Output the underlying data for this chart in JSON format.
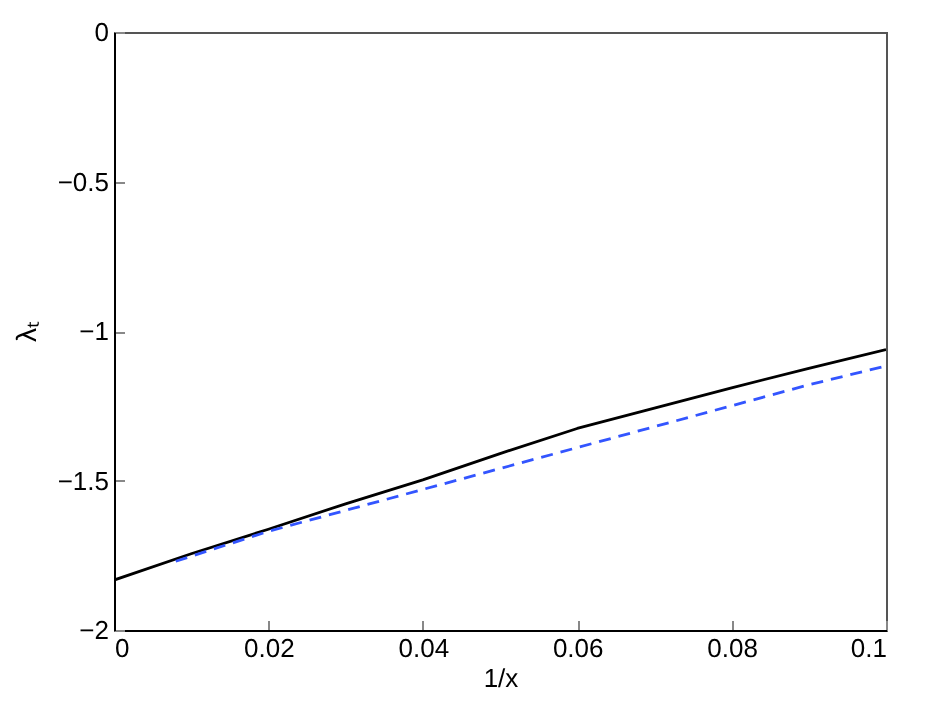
{
  "chart_data": {
    "type": "line",
    "xlabel": "1/x",
    "ylabel": "λₜ",
    "xlim": [
      0,
      0.1
    ],
    "ylim": [
      -2,
      0
    ],
    "xticks": [
      0,
      0.02,
      0.04,
      0.06,
      0.08,
      0.1
    ],
    "yticks": [
      -2,
      -1.5,
      -1,
      -0.5,
      0
    ],
    "grid": false,
    "series": [
      {
        "color": "#000000",
        "line_style": "solid",
        "x": [
          0,
          0.01,
          0.02,
          0.03,
          0.04,
          0.05,
          0.06,
          0.07,
          0.08,
          0.09,
          0.1
        ],
        "values": [
          -1.833,
          -1.745,
          -1.663,
          -1.578,
          -1.498,
          -1.41,
          -1.326,
          -1.258,
          -1.19,
          -1.125,
          -1.062
        ]
      },
      {
        "color": "#3355ff",
        "line_style": "dashed",
        "x": [
          0.008,
          0.02,
          0.03,
          0.04,
          0.05,
          0.06,
          0.07,
          0.08,
          0.09,
          0.1
        ],
        "values": [
          -1.77,
          -1.67,
          -1.6,
          -1.53,
          -1.46,
          -1.39,
          -1.32,
          -1.25,
          -1.18,
          -1.117
        ]
      }
    ]
  }
}
